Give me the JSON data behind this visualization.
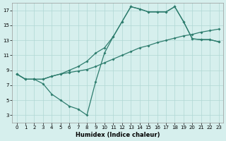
{
  "xlabel": "Humidex (Indice chaleur)",
  "background_color": "#d6efed",
  "grid_color": "#b0d8d4",
  "line_color": "#2e7d6e",
  "xlim": [
    -0.5,
    23.5
  ],
  "ylim": [
    2,
    18
  ],
  "xticks": [
    0,
    1,
    2,
    3,
    4,
    5,
    6,
    7,
    8,
    9,
    10,
    11,
    12,
    13,
    14,
    15,
    16,
    17,
    18,
    19,
    20,
    21,
    22,
    23
  ],
  "yticks": [
    3,
    5,
    7,
    9,
    11,
    13,
    15,
    17
  ],
  "line1_x": [
    0,
    1,
    2,
    3,
    4,
    5,
    6,
    7,
    8,
    9,
    10,
    11,
    12,
    13,
    14,
    15,
    16,
    17,
    18,
    19,
    20,
    21,
    22,
    23
  ],
  "line1_y": [
    8.5,
    7.8,
    7.8,
    7.8,
    8.2,
    8.5,
    8.7,
    8.9,
    9.1,
    9.5,
    10.0,
    10.5,
    11.0,
    11.5,
    12.0,
    12.3,
    12.7,
    13.0,
    13.3,
    13.6,
    13.8,
    14.1,
    14.3,
    14.5
  ],
  "line2_x": [
    0,
    1,
    2,
    3,
    4,
    5,
    6,
    7,
    8,
    9,
    10,
    11,
    12,
    13,
    14,
    15,
    16,
    17,
    18,
    19,
    20,
    21,
    22,
    23
  ],
  "line2_y": [
    8.5,
    7.8,
    7.8,
    7.8,
    8.2,
    8.5,
    9.0,
    9.5,
    10.2,
    11.3,
    12.0,
    13.5,
    15.5,
    17.5,
    17.2,
    16.8,
    16.8,
    16.8,
    17.5,
    15.5,
    13.2,
    13.1,
    13.1,
    12.8
  ],
  "line3_x": [
    0,
    1,
    2,
    3,
    4,
    5,
    6,
    7,
    8,
    9,
    10,
    11,
    12,
    13,
    14,
    15,
    16,
    17,
    18,
    19,
    20,
    21,
    22,
    23
  ],
  "line3_y": [
    8.5,
    7.8,
    7.8,
    7.2,
    5.8,
    5.0,
    4.2,
    3.8,
    3.0,
    7.5,
    11.3,
    13.5,
    15.5,
    17.5,
    17.2,
    16.8,
    16.8,
    16.8,
    17.5,
    15.5,
    13.2,
    13.1,
    13.1,
    12.8
  ],
  "marker_style": "D",
  "marker_size": 2,
  "linewidth": 0.9
}
